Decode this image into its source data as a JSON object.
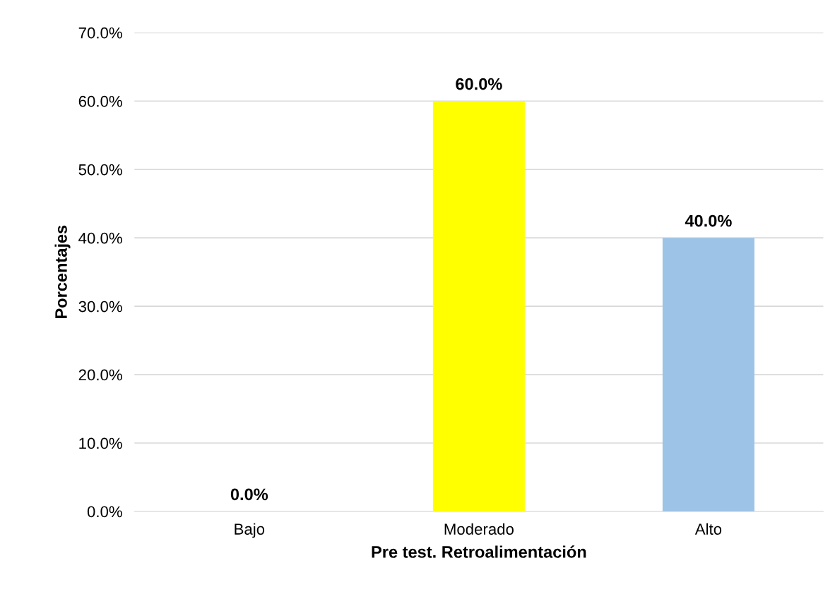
{
  "chart_data": {
    "type": "bar",
    "xlabel": "Pre test. Retroalimentación",
    "ylabel": "Porcentajes",
    "categories": [
      "Bajo",
      "Moderado",
      "Alto"
    ],
    "values": [
      0,
      60,
      40
    ],
    "colors": [
      "#5b9bd5",
      "#ffff00",
      "#9dc3e6"
    ],
    "value_labels": [
      "0.0%",
      "60.0%",
      "40.0%"
    ],
    "ylim": [
      0,
      70
    ],
    "yticks": [
      {
        "value": 0,
        "label": "0.0%"
      },
      {
        "value": 10,
        "label": "10.0%"
      },
      {
        "value": 20,
        "label": "20.0%"
      },
      {
        "value": 30,
        "label": "30.0%"
      },
      {
        "value": 40,
        "label": "40.0%"
      },
      {
        "value": 50,
        "label": "50.0%"
      },
      {
        "value": 60,
        "label": "60.0%"
      },
      {
        "value": 70,
        "label": "70.0%"
      }
    ],
    "grid": "y",
    "legend": false
  }
}
